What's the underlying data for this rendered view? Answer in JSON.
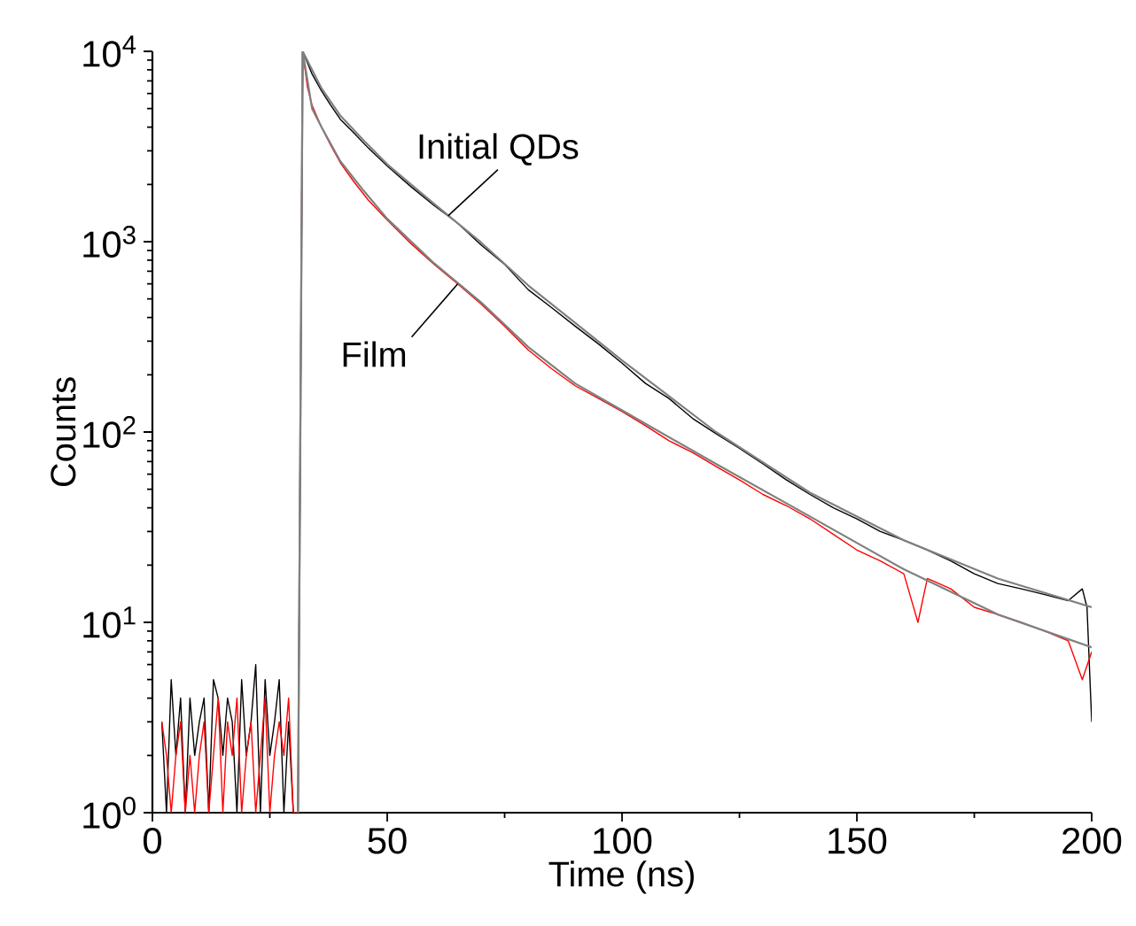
{
  "chart_data": {
    "type": "line",
    "xlabel": "Time (ns)",
    "ylabel": "Counts",
    "log": "y",
    "xlim": [
      0,
      200
    ],
    "ylim": [
      1,
      10000
    ],
    "xticks": [
      0,
      50,
      100,
      150,
      200
    ],
    "yticks": [
      {
        "value": 1,
        "label": "10$^{0}$"
      },
      {
        "value": 10,
        "label": "10$^{1}$"
      },
      {
        "value": 100,
        "label": "10$^{2}$"
      },
      {
        "value": 1000,
        "label": "10$^{3}$"
      },
      {
        "value": 10000,
        "label": "10$^{4}$"
      }
    ],
    "series": [
      {
        "color": "#000000",
        "x": [
          2,
          3,
          4,
          5,
          6,
          7,
          8,
          9,
          10,
          11,
          12,
          13,
          14,
          15,
          16,
          17,
          18,
          19,
          20,
          21,
          22,
          23,
          24,
          25,
          26,
          27,
          28,
          29,
          30,
          31,
          32,
          34,
          36,
          38,
          40,
          43,
          46,
          50,
          55,
          60,
          65,
          70,
          75,
          80,
          85,
          90,
          95,
          100,
          105,
          110,
          115,
          120,
          125,
          130,
          135,
          140,
          145,
          150,
          155,
          160,
          165,
          170,
          175,
          180,
          185,
          190,
          195,
          198,
          199,
          200
        ],
        "values": [
          3,
          1,
          5,
          2,
          4,
          1,
          4,
          2,
          3,
          4,
          1,
          5,
          4,
          2,
          4,
          3,
          1,
          5,
          2,
          3,
          6,
          1,
          5,
          2,
          3,
          5,
          1,
          3,
          1,
          1,
          10000,
          7600,
          6200,
          5200,
          4400,
          3700,
          3100,
          2500,
          1950,
          1550,
          1250,
          960,
          760,
          560,
          450,
          360,
          290,
          230,
          180,
          150,
          118,
          98,
          82,
          68,
          56,
          47,
          40,
          35,
          30,
          27,
          24,
          21,
          18,
          16,
          15,
          14,
          13,
          15,
          12,
          3
        ]
      },
      {
        "color": "#ff0000",
        "x": [
          2,
          3,
          4,
          5,
          6,
          7,
          8,
          9,
          10,
          11,
          12,
          13,
          14,
          15,
          16,
          17,
          18,
          19,
          20,
          21,
          22,
          23,
          24,
          25,
          26,
          27,
          28,
          29,
          30,
          31,
          32,
          33,
          34,
          36,
          38,
          40,
          43,
          46,
          50,
          55,
          60,
          65,
          70,
          75,
          80,
          85,
          90,
          95,
          100,
          105,
          110,
          115,
          120,
          125,
          130,
          135,
          140,
          145,
          150,
          155,
          160,
          163,
          165,
          170,
          175,
          180,
          185,
          190,
          195,
          198,
          200
        ],
        "values": [
          3,
          2,
          1,
          2,
          3,
          1,
          2,
          1,
          2,
          3,
          1,
          2,
          4,
          1,
          3,
          2,
          4,
          1,
          2,
          3,
          1,
          2,
          4,
          1,
          2,
          3,
          2,
          4,
          1,
          1,
          10000,
          6500,
          5200,
          4000,
          3200,
          2600,
          2050,
          1650,
          1300,
          980,
          760,
          600,
          470,
          360,
          270,
          215,
          175,
          150,
          128,
          108,
          90,
          78,
          66,
          56,
          47,
          41,
          35,
          29,
          24,
          21,
          18,
          10,
          17,
          15,
          12,
          11,
          10,
          9,
          8,
          5,
          7
        ]
      },
      {
        "color": "#808080",
        "x": [
          31,
          32,
          36,
          40,
          45,
          50,
          60,
          70,
          80,
          90,
          100,
          120,
          140,
          160,
          180,
          200
        ],
        "values": [
          1,
          10000,
          6400,
          4600,
          3400,
          2550,
          1580,
          990,
          590,
          375,
          238,
          100,
          48,
          27,
          17,
          12
        ]
      },
      {
        "color": "#808080",
        "x": [
          31,
          32,
          34,
          36,
          40,
          45,
          50,
          60,
          70,
          80,
          90,
          100,
          120,
          140,
          160,
          180,
          200
        ],
        "values": [
          1,
          10000,
          5000,
          4000,
          2650,
          1850,
          1320,
          770,
          480,
          280,
          180,
          130,
          68,
          36,
          19,
          11,
          7.4
        ]
      }
    ],
    "annotations": [
      {
        "text": "Initial QDs",
        "x": 63,
        "y": 1370
      },
      {
        "text": "Film",
        "x": 65,
        "y": 600
      }
    ]
  }
}
